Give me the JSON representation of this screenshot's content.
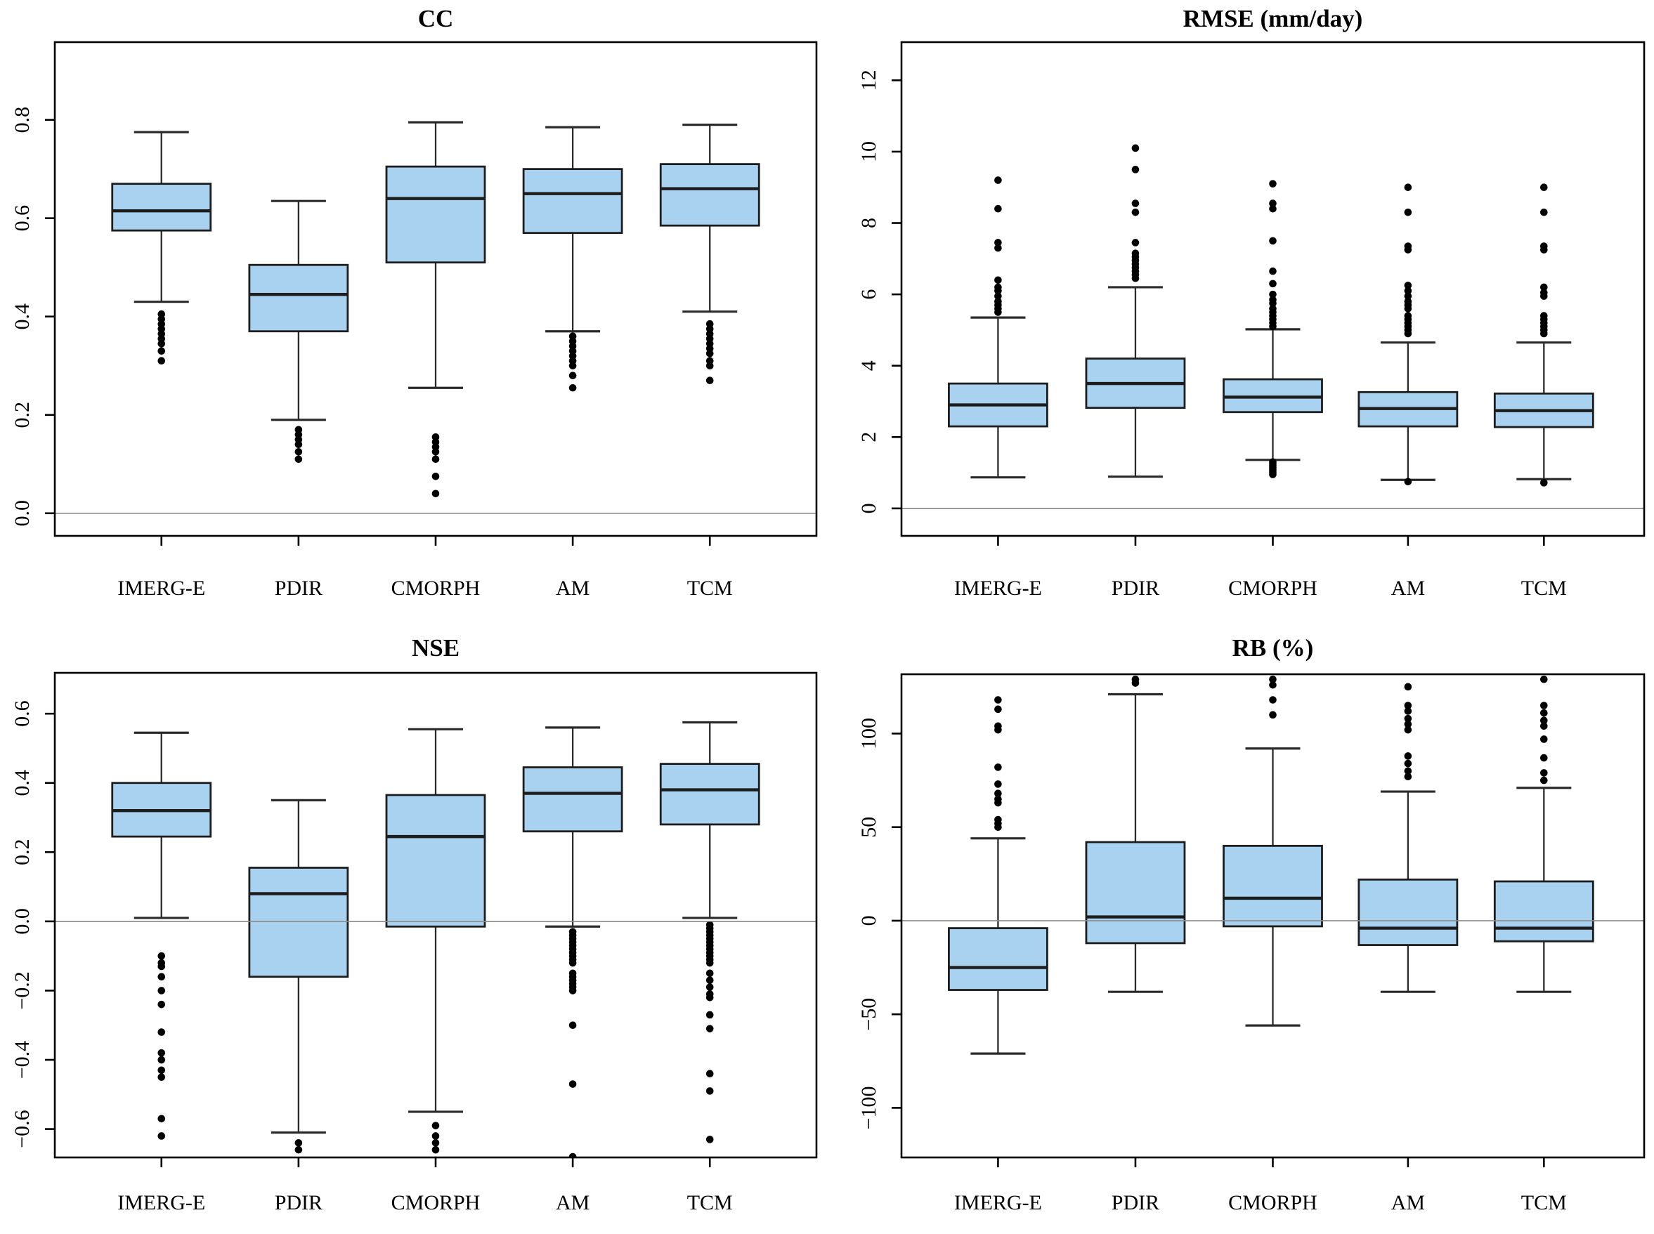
{
  "figure": {
    "background": "#ffffff",
    "box_fill": "#A8D2F0",
    "box_stroke": "#1d1d1d",
    "median_color": "#1d1d1d",
    "whisker_color": "#2a2a2a",
    "outlier_color": "#000000",
    "border_color": "#000000",
    "zero_line_color": "#8c8c8c",
    "text_color": "#000000"
  },
  "categories": [
    "IMERG-E",
    "PDIR",
    "CMORPH",
    "AM",
    "TCM"
  ],
  "chart_data": [
    {
      "type": "boxplot",
      "title": "CC",
      "xlabel": "",
      "ylabel": "",
      "grid": false,
      "legend": null,
      "zero_line": 0,
      "ylim": [
        -0.046,
        0.958
      ],
      "yticks": [
        0.0,
        0.2,
        0.4,
        0.6,
        0.8
      ],
      "ytick_labels": [
        "0.0",
        "0.2",
        "0.4",
        "0.6",
        "0.8"
      ],
      "categories": [
        "IMERG-E",
        "PDIR",
        "CMORPH",
        "AM",
        "TCM"
      ],
      "boxes": [
        {
          "category": "IMERG-E",
          "whisker_low": 0.43,
          "q1": 0.575,
          "median": 0.615,
          "q3": 0.67,
          "whisker_high": 0.775,
          "outliers": [
            0.405,
            0.395,
            0.385,
            0.375,
            0.365,
            0.355,
            0.345,
            0.33,
            0.31
          ]
        },
        {
          "category": "PDIR",
          "whisker_low": 0.19,
          "q1": 0.37,
          "median": 0.445,
          "q3": 0.505,
          "whisker_high": 0.635,
          "outliers": [
            0.17,
            0.16,
            0.15,
            0.14,
            0.125,
            0.11
          ]
        },
        {
          "category": "CMORPH",
          "whisker_low": 0.255,
          "q1": 0.51,
          "median": 0.64,
          "q3": 0.705,
          "whisker_high": 0.795,
          "outliers": [
            0.155,
            0.145,
            0.135,
            0.125,
            0.11,
            0.075,
            0.04
          ]
        },
        {
          "category": "AM",
          "whisker_low": 0.37,
          "q1": 0.57,
          "median": 0.65,
          "q3": 0.7,
          "whisker_high": 0.785,
          "outliers": [
            0.36,
            0.35,
            0.34,
            0.33,
            0.32,
            0.31,
            0.3,
            0.28,
            0.255
          ]
        },
        {
          "category": "TCM",
          "whisker_low": 0.41,
          "q1": 0.585,
          "median": 0.66,
          "q3": 0.71,
          "whisker_high": 0.79,
          "outliers": [
            0.385,
            0.375,
            0.365,
            0.355,
            0.345,
            0.335,
            0.325,
            0.31,
            0.3,
            0.27
          ]
        }
      ]
    },
    {
      "type": "boxplot",
      "title": "RMSE (mm/day)",
      "xlabel": "",
      "ylabel": "",
      "grid": false,
      "legend": null,
      "zero_line": 0,
      "ylim": [
        -0.77,
        13.07
      ],
      "yticks": [
        0,
        2,
        4,
        6,
        8,
        10,
        12
      ],
      "ytick_labels": [
        "0",
        "2",
        "4",
        "6",
        "8",
        "10",
        "12"
      ],
      "categories": [
        "IMERG-E",
        "PDIR",
        "CMORPH",
        "AM",
        "TCM"
      ],
      "boxes": [
        {
          "category": "IMERG-E",
          "whisker_low": 0.87,
          "q1": 2.3,
          "median": 2.9,
          "q3": 3.5,
          "whisker_high": 5.35,
          "outliers": [
            5.5,
            5.6,
            5.7,
            5.8,
            5.95,
            6.1,
            6.2,
            6.4,
            7.3,
            7.45,
            8.4,
            9.2
          ]
        },
        {
          "category": "PDIR",
          "whisker_low": 0.89,
          "q1": 2.82,
          "median": 3.5,
          "q3": 4.2,
          "whisker_high": 6.2,
          "outliers": [
            6.45,
            6.55,
            6.65,
            6.75,
            6.85,
            6.95,
            7.05,
            7.15,
            7.45,
            8.3,
            8.55,
            9.5,
            10.1
          ]
        },
        {
          "category": "CMORPH",
          "whisker_low": 1.36,
          "q1": 2.7,
          "median": 3.12,
          "q3": 3.62,
          "whisker_high": 5.02,
          "outliers": [
            0.95,
            1.0,
            1.05,
            1.1,
            1.15,
            1.2,
            1.25,
            1.3,
            5.1,
            5.2,
            5.3,
            5.4,
            5.5,
            5.6,
            5.75,
            5.85,
            6.0,
            6.3,
            6.65,
            7.5,
            8.4,
            8.55,
            9.1
          ]
        },
        {
          "category": "AM",
          "whisker_low": 0.8,
          "q1": 2.3,
          "median": 2.8,
          "q3": 3.26,
          "whisker_high": 4.65,
          "outliers": [
            0.75,
            4.9,
            5.0,
            5.1,
            5.2,
            5.3,
            5.4,
            5.6,
            5.7,
            5.8,
            5.95,
            6.1,
            6.25,
            7.25,
            7.35,
            8.3,
            9.0
          ]
        },
        {
          "category": "TCM",
          "whisker_low": 0.82,
          "q1": 2.28,
          "median": 2.74,
          "q3": 3.22,
          "whisker_high": 4.65,
          "outliers": [
            0.72,
            4.9,
            5.0,
            5.1,
            5.2,
            5.3,
            5.4,
            5.95,
            6.05,
            6.2,
            7.25,
            7.35,
            8.3,
            9.0
          ]
        }
      ]
    },
    {
      "type": "boxplot",
      "title": "NSE",
      "xlabel": "",
      "ylabel": "",
      "grid": false,
      "legend": null,
      "zero_line": 0,
      "ylim": [
        -0.682,
        0.718
      ],
      "yticks": [
        -0.6,
        -0.4,
        -0.2,
        0.0,
        0.2,
        0.4,
        0.6
      ],
      "ytick_labels": [
        "−0.6",
        "−0.4",
        "−0.2",
        "0.0",
        "0.2",
        "0.4",
        "0.6"
      ],
      "categories": [
        "IMERG-E",
        "PDIR",
        "CMORPH",
        "AM",
        "TCM"
      ],
      "boxes": [
        {
          "category": "IMERG-E",
          "whisker_low": 0.01,
          "q1": 0.245,
          "median": 0.32,
          "q3": 0.4,
          "whisker_high": 0.545,
          "outliers": [
            -0.1,
            -0.12,
            -0.13,
            -0.16,
            -0.2,
            -0.24,
            -0.32,
            -0.38,
            -0.4,
            -0.43,
            -0.45,
            -0.57,
            -0.62
          ]
        },
        {
          "category": "PDIR",
          "whisker_low": -0.61,
          "q1": -0.16,
          "median": 0.08,
          "q3": 0.155,
          "whisker_high": 0.35,
          "outliers": [
            -0.64,
            -0.66,
            -0.7
          ]
        },
        {
          "category": "CMORPH",
          "whisker_low": -0.55,
          "q1": -0.015,
          "median": 0.245,
          "q3": 0.365,
          "whisker_high": 0.555,
          "outliers": [
            -0.59,
            -0.62,
            -0.64,
            -0.66,
            -0.69
          ]
        },
        {
          "category": "AM",
          "whisker_low": -0.015,
          "q1": 0.26,
          "median": 0.37,
          "q3": 0.445,
          "whisker_high": 0.56,
          "outliers": [
            -0.03,
            -0.04,
            -0.05,
            -0.06,
            -0.07,
            -0.08,
            -0.09,
            -0.1,
            -0.11,
            -0.12,
            -0.15,
            -0.16,
            -0.17,
            -0.18,
            -0.19,
            -0.2,
            -0.3,
            -0.47,
            -0.68
          ]
        },
        {
          "category": "TCM",
          "whisker_low": 0.01,
          "q1": 0.28,
          "median": 0.38,
          "q3": 0.455,
          "whisker_high": 0.575,
          "outliers": [
            -0.01,
            -0.02,
            -0.03,
            -0.04,
            -0.05,
            -0.06,
            -0.07,
            -0.08,
            -0.09,
            -0.1,
            -0.11,
            -0.12,
            -0.15,
            -0.17,
            -0.19,
            -0.21,
            -0.22,
            -0.27,
            -0.31,
            -0.44,
            -0.49,
            -0.63
          ]
        }
      ]
    },
    {
      "type": "boxplot",
      "title": "RB (%)",
      "xlabel": "",
      "ylabel": "",
      "grid": false,
      "legend": null,
      "zero_line": 0,
      "ylim": [
        -126.5,
        131.7
      ],
      "yticks": [
        -100,
        -50,
        0,
        50,
        100
      ],
      "ytick_labels": [
        "−100",
        "−50",
        "0",
        "50",
        "100"
      ],
      "categories": [
        "IMERG-E",
        "PDIR",
        "CMORPH",
        "AM",
        "TCM"
      ],
      "boxes": [
        {
          "category": "IMERG-E",
          "whisker_low": -71,
          "q1": -37,
          "median": -25,
          "q3": -4,
          "whisker_high": 44,
          "outliers": [
            50,
            52,
            54,
            63,
            65,
            68,
            73,
            82,
            102,
            104,
            113,
            118
          ]
        },
        {
          "category": "PDIR",
          "whisker_low": -38,
          "q1": -12,
          "median": 2,
          "q3": 42,
          "whisker_high": 121,
          "outliers": [
            127,
            129
          ]
        },
        {
          "category": "CMORPH",
          "whisker_low": -56,
          "q1": -3,
          "median": 12,
          "q3": 40,
          "whisker_high": 92,
          "outliers": [
            110,
            118,
            126,
            129
          ]
        },
        {
          "category": "AM",
          "whisker_low": -38,
          "q1": -13,
          "median": -4,
          "q3": 22,
          "whisker_high": 69,
          "outliers": [
            77,
            80,
            84,
            88,
            102,
            105,
            108,
            112,
            115,
            125
          ]
        },
        {
          "category": "TCM",
          "whisker_low": -38,
          "q1": -11,
          "median": -4,
          "q3": 21,
          "whisker_high": 71,
          "outliers": [
            75,
            79,
            87,
            97,
            104,
            107,
            111,
            115,
            129
          ]
        }
      ]
    }
  ]
}
